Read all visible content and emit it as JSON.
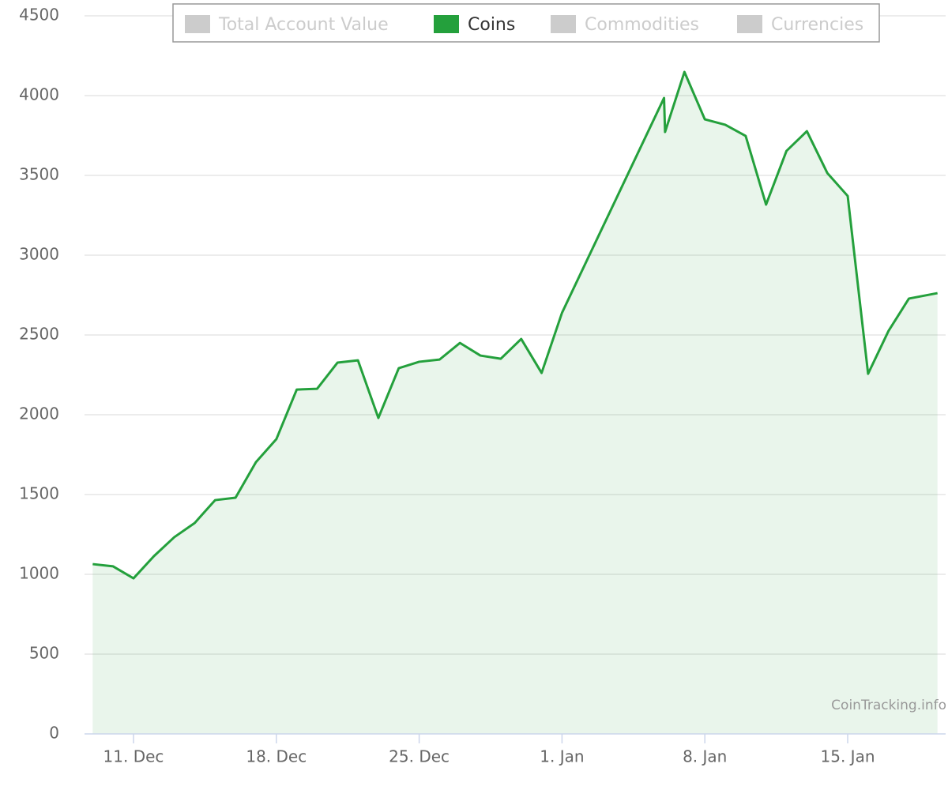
{
  "chart_data": {
    "type": "area",
    "x": [
      9,
      10,
      11,
      12,
      13,
      14,
      15,
      16,
      17,
      18,
      19,
      20,
      21,
      22,
      23,
      24,
      25,
      26,
      27,
      28,
      29,
      30,
      31,
      32,
      37,
      37.05,
      38,
      39,
      40,
      41,
      42,
      43,
      44,
      45,
      46,
      47,
      48,
      49,
      50.4
    ],
    "series": [
      {
        "name": "Total Account Value",
        "color": "#cccccc",
        "visible": false
      },
      {
        "name": "Coins",
        "color": "#24a03c",
        "visible": true,
        "values": [
          1064,
          1050,
          975,
          1114,
          1233,
          1322,
          1465,
          1480,
          1703,
          1847,
          2158,
          2163,
          2327,
          2341,
          1980,
          2292,
          2332,
          2346,
          2450,
          2371,
          2351,
          2475,
          2262,
          2639,
          3985,
          3772,
          4148,
          3851,
          3817,
          3747,
          3317,
          3653,
          3777,
          3515,
          3371,
          2257,
          2525,
          2728,
          2762
        ]
      },
      {
        "name": "Commodities",
        "color": "#cccccc",
        "visible": false
      },
      {
        "name": "Currencies",
        "color": "#cccccc",
        "visible": false
      }
    ],
    "xlim": [
      8.6,
      50.8
    ],
    "xticks": [
      {
        "value": 11,
        "label": "11. Dec"
      },
      {
        "value": 18,
        "label": "18. Dec"
      },
      {
        "value": 25,
        "label": "25. Dec"
      },
      {
        "value": 32,
        "label": "1. Jan"
      },
      {
        "value": 39,
        "label": "8. Jan"
      },
      {
        "value": 46,
        "label": "15. Jan"
      }
    ],
    "ylim": [
      0,
      4500
    ],
    "yticks": [
      0,
      500,
      1000,
      1500,
      2000,
      2500,
      3000,
      3500,
      4000,
      4500
    ],
    "grid": true,
    "legend_position": "top",
    "credit": "CoinTracking.info"
  }
}
